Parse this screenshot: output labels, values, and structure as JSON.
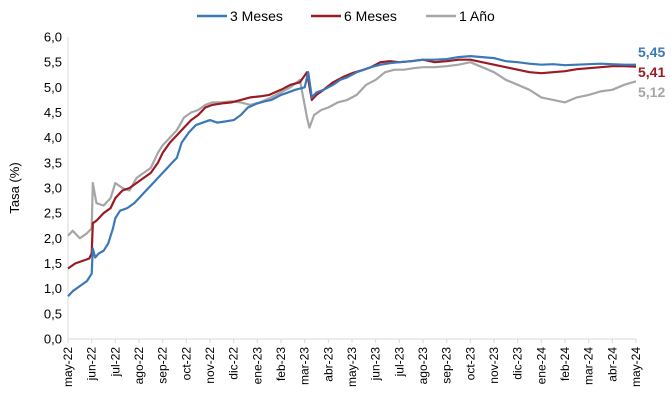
{
  "chart_data": {
    "type": "line",
    "ylabel": "Tasa (%)",
    "xlabel": "",
    "ylim": [
      0,
      6
    ],
    "yticks": [
      "0,0",
      "0,5",
      "1,0",
      "1,5",
      "2,0",
      "2,5",
      "3,0",
      "3,5",
      "4,0",
      "4,5",
      "5,0",
      "5,5",
      "6,0"
    ],
    "xticks": [
      "may-22",
      "jun-22",
      "jul-22",
      "ago-22",
      "sep-22",
      "oct-22",
      "nov-22",
      "dic-22",
      "ene-23",
      "feb-23",
      "mar-23",
      "abr-23",
      "may-23",
      "jun-23",
      "jul-23",
      "ago-23",
      "sep-23",
      "oct-23",
      "nov-23",
      "dic-23",
      "ene-24",
      "feb-24",
      "mar-24",
      "abr-24",
      "may-24"
    ],
    "legend_position": "top-center",
    "grid": false,
    "series": [
      {
        "name": "3 Meses",
        "color": "#3b78b8",
        "end_label": "5,45",
        "points": [
          [
            0,
            0.85
          ],
          [
            0.2,
            0.95
          ],
          [
            0.5,
            1.05
          ],
          [
            0.8,
            1.15
          ],
          [
            1.0,
            1.3
          ],
          [
            1.05,
            1.8
          ],
          [
            1.15,
            1.62
          ],
          [
            1.3,
            1.7
          ],
          [
            1.5,
            1.75
          ],
          [
            1.7,
            1.9
          ],
          [
            1.9,
            2.2
          ],
          [
            2.0,
            2.4
          ],
          [
            2.2,
            2.55
          ],
          [
            2.5,
            2.6
          ],
          [
            2.8,
            2.7
          ],
          [
            3.0,
            2.8
          ],
          [
            3.3,
            2.95
          ],
          [
            3.6,
            3.1
          ],
          [
            3.9,
            3.25
          ],
          [
            4.1,
            3.35
          ],
          [
            4.4,
            3.5
          ],
          [
            4.6,
            3.6
          ],
          [
            4.8,
            3.9
          ],
          [
            5.1,
            4.1
          ],
          [
            5.4,
            4.25
          ],
          [
            5.7,
            4.3
          ],
          [
            6.0,
            4.35
          ],
          [
            6.3,
            4.3
          ],
          [
            6.6,
            4.32
          ],
          [
            7.0,
            4.35
          ],
          [
            7.3,
            4.45
          ],
          [
            7.6,
            4.6
          ],
          [
            8.0,
            4.68
          ],
          [
            8.3,
            4.72
          ],
          [
            8.6,
            4.75
          ],
          [
            9.0,
            4.85
          ],
          [
            9.3,
            4.9
          ],
          [
            9.6,
            4.95
          ],
          [
            10.0,
            5.0
          ],
          [
            10.15,
            5.3
          ],
          [
            10.3,
            4.8
          ],
          [
            10.5,
            4.9
          ],
          [
            10.8,
            4.95
          ],
          [
            11.2,
            5.05
          ],
          [
            11.5,
            5.15
          ],
          [
            11.8,
            5.2
          ],
          [
            12.2,
            5.3
          ],
          [
            12.5,
            5.35
          ],
          [
            12.8,
            5.4
          ],
          [
            13.2,
            5.45
          ],
          [
            13.6,
            5.48
          ],
          [
            14.0,
            5.5
          ],
          [
            14.5,
            5.52
          ],
          [
            15.0,
            5.55
          ],
          [
            15.5,
            5.55
          ],
          [
            16.0,
            5.56
          ],
          [
            16.5,
            5.6
          ],
          [
            17.0,
            5.62
          ],
          [
            17.5,
            5.6
          ],
          [
            18.0,
            5.58
          ],
          [
            18.5,
            5.52
          ],
          [
            19.0,
            5.5
          ],
          [
            19.5,
            5.47
          ],
          [
            20.0,
            5.45
          ],
          [
            20.5,
            5.46
          ],
          [
            21.0,
            5.44
          ],
          [
            21.5,
            5.45
          ],
          [
            22.0,
            5.46
          ],
          [
            22.5,
            5.47
          ],
          [
            23.0,
            5.46
          ],
          [
            23.5,
            5.45
          ],
          [
            24.0,
            5.45
          ]
        ]
      },
      {
        "name": "6 Meses",
        "color": "#9b1b24",
        "end_label": "5,41",
        "points": [
          [
            0,
            1.4
          ],
          [
            0.3,
            1.5
          ],
          [
            0.6,
            1.55
          ],
          [
            0.9,
            1.6
          ],
          [
            1.0,
            1.7
          ],
          [
            1.05,
            2.3
          ],
          [
            1.2,
            2.35
          ],
          [
            1.5,
            2.5
          ],
          [
            1.8,
            2.6
          ],
          [
            2.0,
            2.8
          ],
          [
            2.3,
            2.95
          ],
          [
            2.6,
            3.0
          ],
          [
            2.9,
            3.1
          ],
          [
            3.2,
            3.2
          ],
          [
            3.5,
            3.3
          ],
          [
            3.8,
            3.5
          ],
          [
            4.0,
            3.7
          ],
          [
            4.3,
            3.9
          ],
          [
            4.6,
            4.05
          ],
          [
            4.9,
            4.2
          ],
          [
            5.2,
            4.35
          ],
          [
            5.5,
            4.45
          ],
          [
            5.8,
            4.6
          ],
          [
            6.1,
            4.65
          ],
          [
            6.5,
            4.68
          ],
          [
            6.9,
            4.7
          ],
          [
            7.3,
            4.75
          ],
          [
            7.7,
            4.8
          ],
          [
            8.1,
            4.82
          ],
          [
            8.5,
            4.85
          ],
          [
            9.0,
            4.95
          ],
          [
            9.4,
            5.05
          ],
          [
            9.8,
            5.1
          ],
          [
            10.1,
            5.3
          ],
          [
            10.3,
            4.75
          ],
          [
            10.5,
            4.85
          ],
          [
            10.8,
            4.95
          ],
          [
            11.2,
            5.1
          ],
          [
            11.6,
            5.2
          ],
          [
            12.0,
            5.28
          ],
          [
            12.5,
            5.35
          ],
          [
            12.8,
            5.4
          ],
          [
            13.2,
            5.5
          ],
          [
            13.6,
            5.52
          ],
          [
            14.0,
            5.5
          ],
          [
            14.5,
            5.52
          ],
          [
            15.0,
            5.55
          ],
          [
            15.5,
            5.5
          ],
          [
            16.0,
            5.52
          ],
          [
            16.5,
            5.55
          ],
          [
            17.0,
            5.55
          ],
          [
            17.5,
            5.5
          ],
          [
            18.0,
            5.45
          ],
          [
            18.5,
            5.4
          ],
          [
            19.0,
            5.35
          ],
          [
            19.5,
            5.3
          ],
          [
            20.0,
            5.28
          ],
          [
            20.5,
            5.3
          ],
          [
            21.0,
            5.32
          ],
          [
            21.5,
            5.36
          ],
          [
            22.0,
            5.38
          ],
          [
            22.5,
            5.4
          ],
          [
            23.0,
            5.42
          ],
          [
            23.5,
            5.42
          ],
          [
            24.0,
            5.41
          ]
        ]
      },
      {
        "name": "1 Año",
        "color": "#a6a6a6",
        "end_label": "5,12",
        "points": [
          [
            0,
            2.05
          ],
          [
            0.2,
            2.15
          ],
          [
            0.5,
            2.0
          ],
          [
            0.8,
            2.1
          ],
          [
            1.0,
            2.2
          ],
          [
            1.05,
            3.1
          ],
          [
            1.2,
            2.7
          ],
          [
            1.5,
            2.65
          ],
          [
            1.8,
            2.8
          ],
          [
            2.0,
            3.1
          ],
          [
            2.3,
            3.0
          ],
          [
            2.6,
            2.95
          ],
          [
            2.9,
            3.2
          ],
          [
            3.2,
            3.3
          ],
          [
            3.5,
            3.4
          ],
          [
            3.8,
            3.7
          ],
          [
            4.0,
            3.85
          ],
          [
            4.3,
            4.0
          ],
          [
            4.6,
            4.15
          ],
          [
            4.9,
            4.4
          ],
          [
            5.2,
            4.5
          ],
          [
            5.5,
            4.55
          ],
          [
            5.8,
            4.65
          ],
          [
            6.1,
            4.7
          ],
          [
            6.5,
            4.7
          ],
          [
            6.9,
            4.72
          ],
          [
            7.3,
            4.7
          ],
          [
            7.7,
            4.65
          ],
          [
            8.1,
            4.7
          ],
          [
            8.5,
            4.78
          ],
          [
            9.0,
            4.9
          ],
          [
            9.4,
            5.0
          ],
          [
            9.8,
            5.15
          ],
          [
            10.1,
            4.4
          ],
          [
            10.2,
            4.2
          ],
          [
            10.4,
            4.45
          ],
          [
            10.7,
            4.55
          ],
          [
            11.0,
            4.6
          ],
          [
            11.4,
            4.7
          ],
          [
            11.8,
            4.75
          ],
          [
            12.2,
            4.85
          ],
          [
            12.6,
            5.05
          ],
          [
            13.0,
            5.15
          ],
          [
            13.4,
            5.3
          ],
          [
            13.8,
            5.35
          ],
          [
            14.2,
            5.35
          ],
          [
            14.6,
            5.38
          ],
          [
            15.0,
            5.4
          ],
          [
            15.5,
            5.4
          ],
          [
            16.0,
            5.42
          ],
          [
            16.5,
            5.45
          ],
          [
            17.0,
            5.5
          ],
          [
            17.5,
            5.4
          ],
          [
            18.0,
            5.3
          ],
          [
            18.5,
            5.15
          ],
          [
            19.0,
            5.05
          ],
          [
            19.5,
            4.95
          ],
          [
            20.0,
            4.8
          ],
          [
            20.5,
            4.75
          ],
          [
            21.0,
            4.7
          ],
          [
            21.5,
            4.8
          ],
          [
            22.0,
            4.85
          ],
          [
            22.5,
            4.92
          ],
          [
            23.0,
            4.95
          ],
          [
            23.5,
            5.05
          ],
          [
            24.0,
            5.12
          ]
        ]
      }
    ]
  }
}
